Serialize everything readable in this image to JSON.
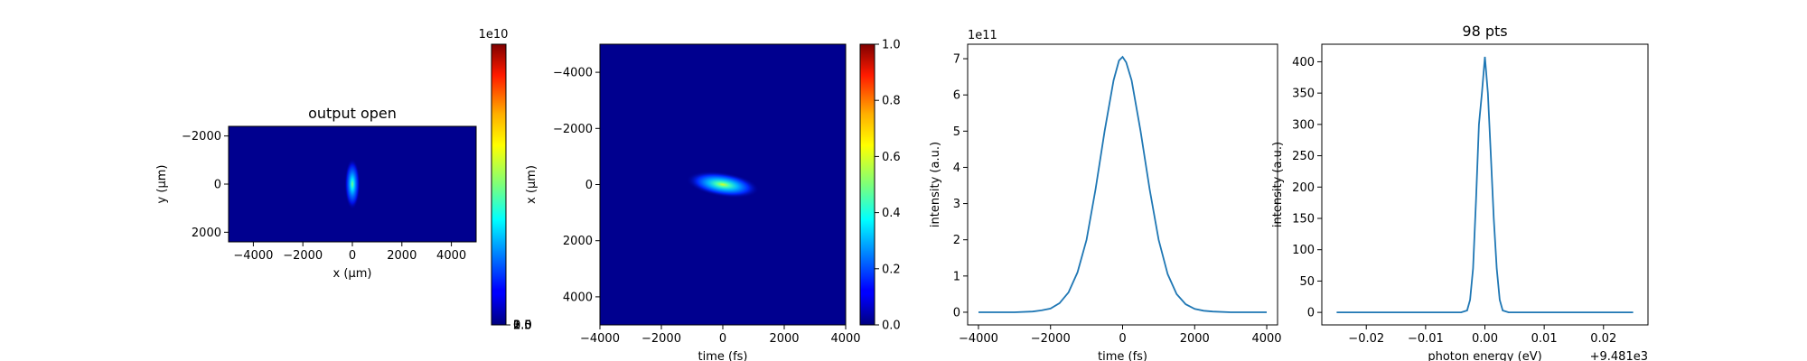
{
  "colors": {
    "curve": "#1f77b4",
    "axis": "#000000",
    "background": "#ffffff"
  },
  "chart_data": [
    {
      "type": "heatmap",
      "title": "output open",
      "xlabel": "x (μm)",
      "ylabel": "y (μm)",
      "xlim": [
        -5000,
        5000
      ],
      "ylim": [
        -2400,
        2400
      ],
      "y_inverted": true,
      "xticks": [
        -4000,
        -2000,
        0,
        2000,
        4000
      ],
      "xtick_labels": [
        "−4000",
        "−2000",
        "0",
        "2000",
        "4000"
      ],
      "yticks": [
        -2000,
        0,
        2000
      ],
      "ytick_labels": [
        "−2000",
        "0",
        "2000"
      ],
      "colormap": "jet",
      "feature": {
        "center_x": 0,
        "center_y": 0,
        "sigma_x": 140,
        "sigma_y": 480
      }
    },
    {
      "type": "colorbar",
      "range": [
        0,
        38500000000.0
      ],
      "ticks": [
        0.0,
        0.5,
        1.0,
        1.5,
        2.0,
        2.5,
        3.0,
        3.5
      ],
      "tick_labels": [
        "0.0",
        "0.5",
        "1.0",
        "1.5",
        "2.0",
        "2.5",
        "3.0",
        "3.5"
      ],
      "offset_label": "1e10",
      "colormap": "jet"
    },
    {
      "type": "heatmap",
      "title": "",
      "xlabel": "time (fs)",
      "ylabel": "x (μm)",
      "xlim": [
        -4000,
        4000
      ],
      "ylim": [
        -5000,
        5000
      ],
      "y_inverted": true,
      "xticks": [
        -4000,
        -2000,
        0,
        2000,
        4000
      ],
      "xtick_labels": [
        "−4000",
        "−2000",
        "0",
        "2000",
        "4000"
      ],
      "yticks": [
        -4000,
        -2000,
        0,
        2000,
        4000
      ],
      "ytick_labels": [
        "−4000",
        "−2000",
        "0",
        "2000",
        "4000"
      ],
      "colormap": "jet",
      "feature": {
        "center_x": 0,
        "center_y": 0,
        "sigma_x": 500,
        "sigma_y": 200,
        "tilt": 0.15
      }
    },
    {
      "type": "colorbar",
      "range": [
        0,
        1
      ],
      "ticks": [
        0.0,
        0.2,
        0.4,
        0.6,
        0.8,
        1.0
      ],
      "tick_labels": [
        "0.0",
        "0.2",
        "0.4",
        "0.6",
        "0.8",
        "1.0"
      ],
      "colormap": "jet"
    },
    {
      "type": "line",
      "title": "",
      "xlabel": "time (fs)",
      "ylabel": "intensity (a.u.)",
      "xlim": [
        -4300,
        4300
      ],
      "ylim": [
        -0.35,
        7.4
      ],
      "xticks": [
        -4000,
        -2000,
        0,
        2000,
        4000
      ],
      "xtick_labels": [
        "−4000",
        "−2000",
        "0",
        "2000",
        "4000"
      ],
      "yticks": [
        0,
        1,
        2,
        3,
        4,
        5,
        6,
        7
      ],
      "ytick_labels": [
        "0",
        "1",
        "2",
        "3",
        "4",
        "5",
        "6",
        "7"
      ],
      "offset_label": "1e11",
      "series": [
        {
          "x": [
            -4000,
            -3500,
            -3000,
            -2500,
            -2250,
            -2000,
            -1750,
            -1500,
            -1250,
            -1000,
            -750,
            -500,
            -250,
            -100,
            0,
            100,
            250,
            500,
            750,
            1000,
            1250,
            1500,
            1750,
            2000,
            2250,
            2500,
            3000,
            3500,
            4000
          ],
          "values": [
            0.0,
            0.0,
            0.0,
            0.02,
            0.05,
            0.1,
            0.25,
            0.55,
            1.1,
            2.0,
            3.4,
            5.0,
            6.4,
            6.95,
            7.05,
            6.9,
            6.4,
            5.0,
            3.4,
            2.0,
            1.05,
            0.5,
            0.22,
            0.09,
            0.04,
            0.02,
            0.0,
            0.0,
            0.0
          ]
        }
      ]
    },
    {
      "type": "line",
      "title": "98 pts",
      "xlabel": "photon energy (eV)",
      "ylabel": "intensity (a.u.)",
      "xlim": [
        -0.0275,
        0.0275
      ],
      "ylim": [
        -20,
        428
      ],
      "xticks": [
        -0.02,
        -0.01,
        0.0,
        0.01,
        0.02
      ],
      "xtick_labels": [
        "−0.02",
        "−0.01",
        "0.00",
        "0.01",
        "0.02"
      ],
      "yticks": [
        0,
        50,
        100,
        150,
        200,
        250,
        300,
        350,
        400
      ],
      "ytick_labels": [
        "0",
        "50",
        "100",
        "150",
        "200",
        "250",
        "300",
        "350",
        "400"
      ],
      "offset_label": "+9.481e3",
      "series": [
        {
          "x": [
            -0.025,
            -0.01,
            -0.004,
            -0.003,
            -0.0025,
            -0.002,
            -0.0015,
            -0.001,
            -0.0005,
            0.0,
            0.0005,
            0.001,
            0.0015,
            0.002,
            0.0025,
            0.003,
            0.004,
            0.01,
            0.025
          ],
          "values": [
            0,
            0,
            0,
            3,
            20,
            70,
            180,
            300,
            350,
            408,
            350,
            250,
            150,
            70,
            20,
            3,
            0,
            0,
            0
          ]
        }
      ]
    }
  ]
}
